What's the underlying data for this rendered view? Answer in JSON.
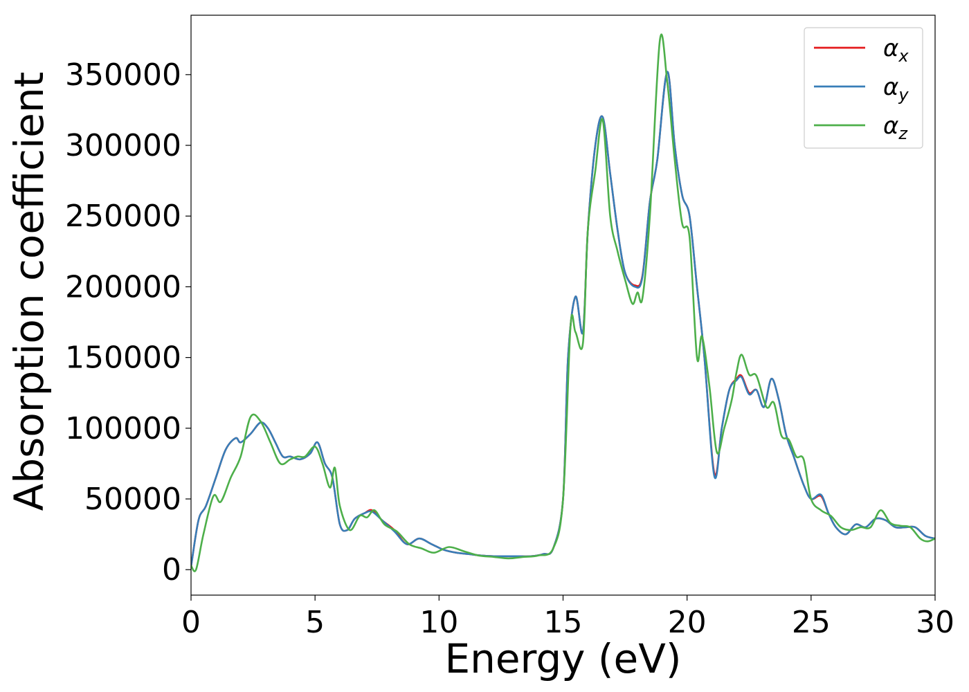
{
  "chart_data": {
    "type": "line",
    "xlabel": "Energy (eV)",
    "ylabel": "Absorption coefficient",
    "xlim": [
      0,
      30
    ],
    "ylim": [
      -18000,
      392000
    ],
    "xticks": [
      0,
      5,
      10,
      15,
      20,
      25,
      30
    ],
    "yticks": [
      0,
      50000,
      100000,
      150000,
      200000,
      250000,
      300000,
      350000
    ],
    "grid": false,
    "legend_position": "top-right",
    "series": [
      {
        "name": "α",
        "subscript": "x",
        "color": "#e41a1c",
        "x": [
          0,
          0.3,
          0.6,
          1.0,
          1.4,
          1.8,
          2.0,
          2.4,
          2.8,
          3.1,
          3.4,
          3.7,
          4.0,
          4.4,
          4.8,
          5.1,
          5.4,
          5.7,
          6.0,
          6.3,
          6.6,
          7.0,
          7.3,
          7.7,
          8.2,
          8.7,
          9.2,
          9.7,
          10.2,
          10.7,
          11.2,
          11.7,
          12.2,
          12.7,
          13.2,
          13.7,
          14.2,
          14.6,
          15.0,
          15.2,
          15.5,
          15.8,
          16.0,
          16.3,
          16.6,
          16.9,
          17.2,
          17.5,
          17.9,
          18.2,
          18.5,
          18.8,
          19.2,
          19.5,
          19.8,
          20.1,
          20.4,
          20.7,
          21.1,
          21.4,
          21.7,
          22.0,
          22.2,
          22.5,
          22.8,
          23.1,
          23.4,
          23.7,
          24.0,
          24.3,
          24.7,
          25.0,
          25.4,
          25.7,
          26.0,
          26.4,
          26.8,
          27.2,
          27.6,
          28.0,
          28.4,
          28.8,
          29.2,
          29.6,
          30.0
        ],
        "y": [
          2000,
          35000,
          45000,
          65000,
          85000,
          93000,
          90000,
          96000,
          104000,
          100000,
          90000,
          80000,
          80000,
          78000,
          82000,
          90000,
          75000,
          65000,
          32000,
          28000,
          36000,
          40000,
          42000,
          35000,
          28000,
          18000,
          22000,
          18000,
          14000,
          12000,
          11000,
          10000,
          9500,
          9500,
          9500,
          9500,
          11000,
          15000,
          50000,
          150000,
          193000,
          168000,
          240000,
          300000,
          320000,
          280000,
          240000,
          210000,
          201000,
          208000,
          260000,
          290000,
          352000,
          300000,
          265000,
          250000,
          200000,
          150000,
          68000,
          100000,
          127000,
          135000,
          137000,
          125000,
          127000,
          115000,
          135000,
          120000,
          95000,
          80000,
          60000,
          50000,
          52000,
          40000,
          30000,
          25000,
          32000,
          30000,
          36000,
          35000,
          30000,
          30000,
          30000,
          24000,
          22000
        ]
      },
      {
        "name": "α",
        "subscript": "y",
        "color": "#377eb8",
        "x": [
          0,
          0.3,
          0.6,
          1.0,
          1.4,
          1.8,
          2.0,
          2.4,
          2.8,
          3.1,
          3.4,
          3.7,
          4.0,
          4.4,
          4.8,
          5.1,
          5.4,
          5.7,
          6.0,
          6.3,
          6.6,
          7.0,
          7.3,
          7.7,
          8.2,
          8.7,
          9.2,
          9.7,
          10.2,
          10.7,
          11.2,
          11.7,
          12.2,
          12.7,
          13.2,
          13.7,
          14.2,
          14.6,
          15.0,
          15.2,
          15.5,
          15.8,
          16.0,
          16.3,
          16.6,
          16.9,
          17.2,
          17.5,
          17.9,
          18.2,
          18.5,
          18.8,
          19.2,
          19.5,
          19.8,
          20.1,
          20.4,
          20.7,
          21.1,
          21.4,
          21.7,
          22.0,
          22.2,
          22.5,
          22.8,
          23.1,
          23.4,
          23.7,
          24.0,
          24.3,
          24.7,
          25.0,
          25.4,
          25.7,
          26.0,
          26.4,
          26.8,
          27.2,
          27.6,
          28.0,
          28.4,
          28.8,
          29.2,
          29.6,
          30.0
        ],
        "y": [
          2000,
          35000,
          45000,
          65000,
          85000,
          93000,
          90000,
          96000,
          104000,
          100000,
          90000,
          80000,
          80000,
          78000,
          82000,
          90000,
          75000,
          65000,
          32000,
          28000,
          36000,
          40000,
          41000,
          35000,
          27000,
          18000,
          22000,
          18000,
          14000,
          12000,
          11000,
          10000,
          9500,
          9500,
          9500,
          9500,
          11000,
          15000,
          50000,
          150000,
          193000,
          168000,
          240000,
          300000,
          320000,
          280000,
          240000,
          210000,
          200000,
          207000,
          260000,
          290000,
          352000,
          300000,
          265000,
          250000,
          200000,
          150000,
          66000,
          100000,
          127000,
          134000,
          136000,
          124000,
          127000,
          115000,
          135000,
          120000,
          95000,
          80000,
          60000,
          50000,
          53000,
          40000,
          30000,
          25000,
          32000,
          30000,
          36000,
          35000,
          30000,
          30000,
          30000,
          24000,
          22000
        ]
      },
      {
        "name": "α",
        "subscript": "z",
        "color": "#4daf4a",
        "x": [
          0,
          0.2,
          0.5,
          0.9,
          1.2,
          1.6,
          2.0,
          2.4,
          2.8,
          3.2,
          3.6,
          4.0,
          4.3,
          4.6,
          5.0,
          5.3,
          5.6,
          5.8,
          6.0,
          6.4,
          6.8,
          7.1,
          7.4,
          7.8,
          8.3,
          8.8,
          9.3,
          9.8,
          10.4,
          11.0,
          11.6,
          12.2,
          12.8,
          13.4,
          14.0,
          14.6,
          15.0,
          15.3,
          15.5,
          15.8,
          16.0,
          16.3,
          16.6,
          16.9,
          17.2,
          17.5,
          17.8,
          18.0,
          18.2,
          18.5,
          18.9,
          19.2,
          19.5,
          19.8,
          20.1,
          20.4,
          20.6,
          20.9,
          21.2,
          21.5,
          21.8,
          22.0,
          22.2,
          22.5,
          22.8,
          23.2,
          23.5,
          23.8,
          24.1,
          24.4,
          24.7,
          25.0,
          25.4,
          25.8,
          26.2,
          26.6,
          27.0,
          27.4,
          27.8,
          28.2,
          28.6,
          29.0,
          29.4,
          29.7,
          30.0
        ],
        "y": [
          3000,
          0,
          25000,
          52000,
          48000,
          65000,
          80000,
          108000,
          105000,
          90000,
          75000,
          78000,
          80000,
          80000,
          87000,
          75000,
          58000,
          72000,
          45000,
          28000,
          38000,
          37000,
          42000,
          32000,
          27000,
          18000,
          15000,
          12000,
          16000,
          13000,
          10000,
          9000,
          8000,
          9000,
          10000,
          15000,
          50000,
          172000,
          168000,
          160000,
          240000,
          282000,
          318000,
          250000,
          225000,
          205000,
          188000,
          196000,
          192000,
          250000,
          374000,
          345000,
          290000,
          245000,
          235000,
          150000,
          165000,
          130000,
          83000,
          100000,
          120000,
          140000,
          152000,
          138000,
          137000,
          115000,
          118000,
          95000,
          92000,
          80000,
          78000,
          50000,
          42000,
          38000,
          30000,
          28000,
          30000,
          30000,
          42000,
          33000,
          31000,
          30000,
          22000,
          20000,
          22000
        ]
      }
    ]
  }
}
